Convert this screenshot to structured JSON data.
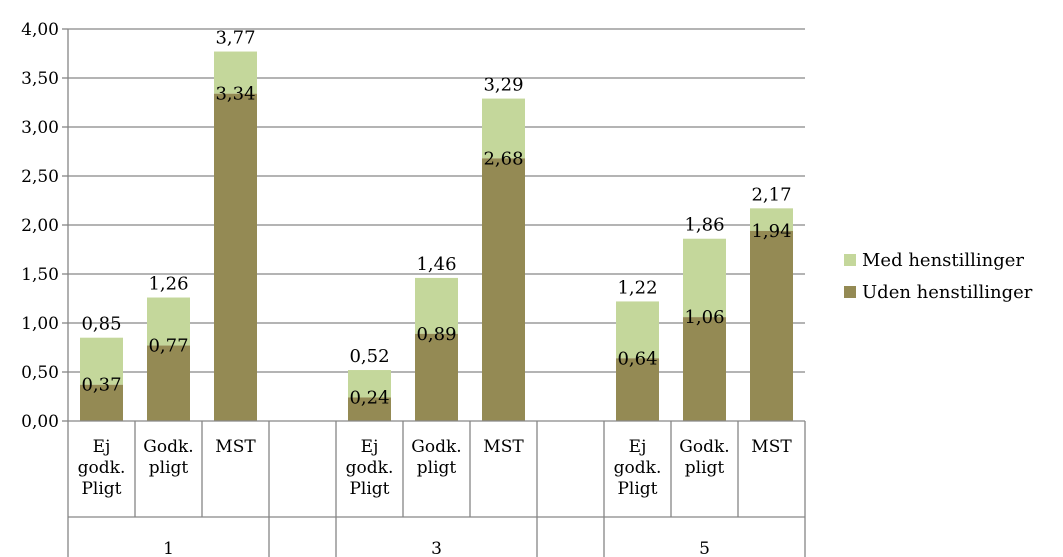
{
  "chart_data": {
    "type": "bar",
    "stacked": true,
    "title": "",
    "xlabel": "",
    "ylabel": "",
    "ylim": [
      0,
      4
    ],
    "ytick_labels": [
      "0,00",
      "0,50",
      "1,00",
      "1,50",
      "2,00",
      "2,50",
      "3,00",
      "3,50",
      "4,00"
    ],
    "grid": true,
    "legend_position": "right",
    "groups": [
      {
        "label": "1",
        "categories": [
          [
            "Ej",
            "godk.",
            "Pligt"
          ],
          [
            "Godk.",
            "pligt"
          ],
          [
            "MST"
          ]
        ]
      },
      {
        "label": "3",
        "categories": [
          [
            "Ej",
            "godk.",
            "Pligt"
          ],
          [
            "Godk.",
            "pligt"
          ],
          [
            "MST"
          ]
        ]
      },
      {
        "label": "5",
        "categories": [
          [
            "Ej",
            "godk.",
            "Pligt"
          ],
          [
            "Godk.",
            "pligt"
          ],
          [
            "MST"
          ]
        ]
      }
    ],
    "series": [
      {
        "name": "Uden henstillinger",
        "color": "#948a54",
        "values": [
          0.37,
          0.77,
          3.34,
          0.24,
          0.89,
          2.68,
          0.64,
          1.06,
          1.94
        ],
        "labels": [
          "0,37",
          "0,77",
          "3,34",
          "0,24",
          "0,89",
          "2,68",
          "0,64",
          "1,06",
          "1,94"
        ]
      },
      {
        "name": "Med henstillinger",
        "color": "#c4d79b",
        "totals": [
          0.85,
          1.26,
          3.77,
          0.52,
          1.46,
          3.29,
          1.22,
          1.86,
          2.17
        ],
        "labels": [
          "0,85",
          "1,26",
          "3,77",
          "0,52",
          "1,46",
          "3,29",
          "1,22",
          "1,86",
          "2,17"
        ]
      }
    ],
    "legend": [
      "Med henstillinger",
      "Uden henstillinger"
    ]
  }
}
